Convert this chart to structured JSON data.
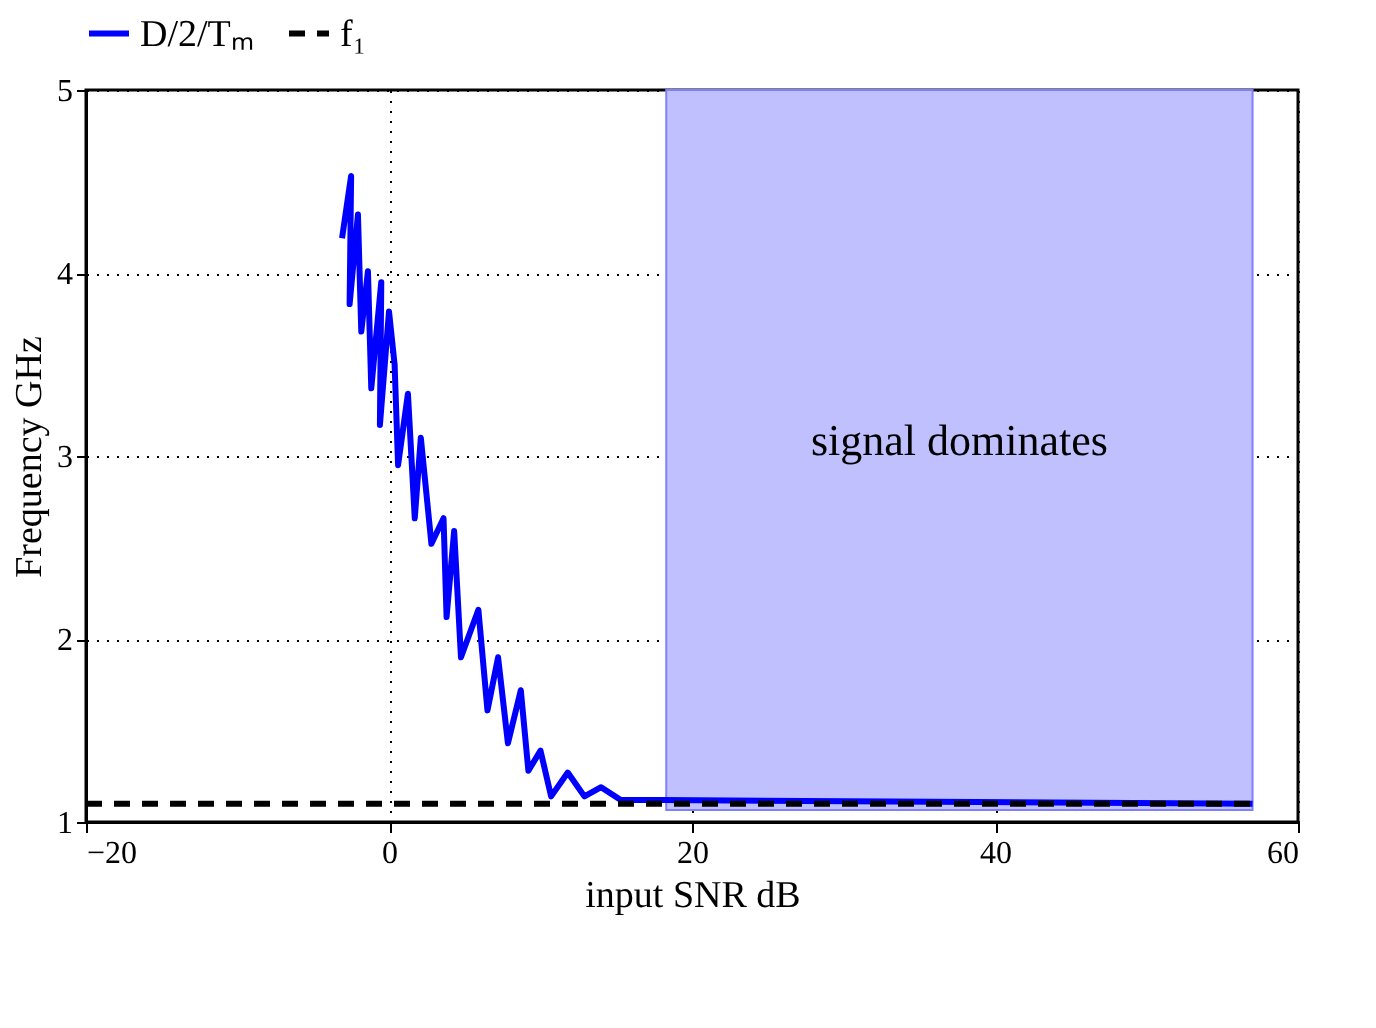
{
  "chart_data": {
    "type": "line",
    "xlabel": "input SNR dB",
    "ylabel": "Frequency GHz",
    "xlim": [
      -20,
      60
    ],
    "ylim": [
      1,
      5
    ],
    "xticks": [
      -20,
      0,
      20,
      40,
      60
    ],
    "yticks": [
      1,
      2,
      3,
      4,
      5
    ],
    "grid": true,
    "legend": "top",
    "series": [
      {
        "name": "D/2/Tₘ",
        "color": "#0000ff",
        "line_style": "solid",
        "x": [
          -3.1,
          -2.5,
          -2.6,
          -2.05,
          -1.83,
          -1.39,
          -1.17,
          -0.51,
          -0.6,
          0,
          0.37,
          0.6,
          1.25,
          1.7,
          2.1,
          2.8,
          3.6,
          3.8,
          4.3,
          4.75,
          5.9,
          6.5,
          7.2,
          7.85,
          8.7,
          9.2,
          10,
          10.7,
          11.8,
          12.9,
          14,
          15.3,
          18,
          57
        ],
        "values": [
          4.19,
          4.53,
          3.83,
          4.32,
          3.68,
          4.01,
          3.37,
          3.95,
          3.17,
          3.79,
          3.5,
          2.95,
          3.34,
          2.66,
          3.1,
          2.52,
          2.66,
          2.12,
          2.59,
          1.9,
          2.16,
          1.61,
          1.9,
          1.43,
          1.72,
          1.28,
          1.39,
          1.14,
          1.27,
          1.14,
          1.19,
          1.12,
          1.12,
          1.1
        ]
      },
      {
        "name": "f₁",
        "color": "#000000",
        "line_style": "dashed",
        "x": [
          -20,
          57
        ],
        "values": [
          1.1,
          1.1
        ]
      }
    ],
    "bands": [
      {
        "axis": "x",
        "from": 18.3,
        "to": 57,
        "label": "signal dominates",
        "color": "#c0c0ff"
      }
    ]
  }
}
